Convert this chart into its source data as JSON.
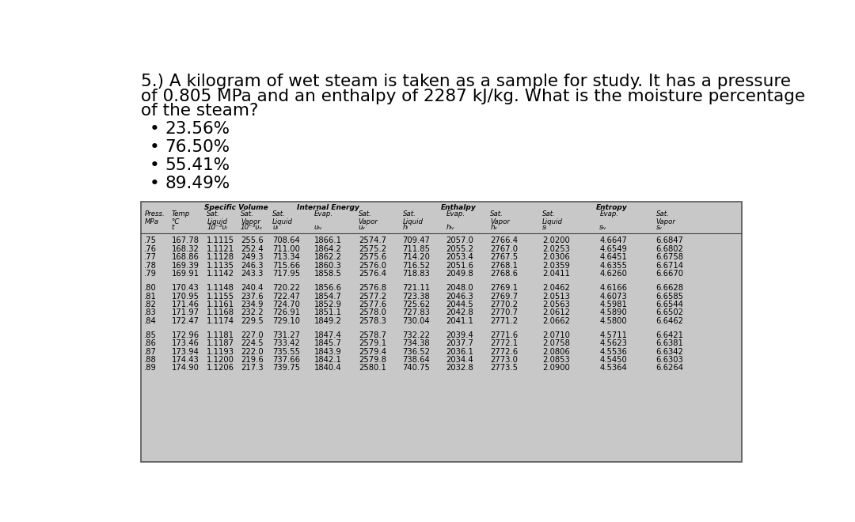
{
  "question_line1": "5.) A kilogram of wet steam is taken as a sample for study. It has a pressure",
  "question_line2": "of 0.805 MPa and an enthalpy of 2287 kJ/kg. What is the moisture percentage",
  "question_line3": "of the steam?",
  "bullets": [
    "23.56%",
    "76.50%",
    "55.41%",
    "89.49%"
  ],
  "table_bg": "#c8c8c8",
  "data_groups": [
    {
      "rows": [
        [
          ".75",
          "167.78",
          "1.1115",
          "255.6",
          "708.64",
          "1866.1",
          "2574.7",
          "709.47",
          "2057.0",
          "2766.4",
          "2.0200",
          "4.6647",
          "6.6847"
        ],
        [
          ".76",
          "168.32",
          "1.1121",
          "252.4",
          "711.00",
          "1864.2",
          "2575.2",
          "711.85",
          "2055.2",
          "2767.0",
          "2.0253",
          "4.6549",
          "6.6802"
        ],
        [
          ".77",
          "168.86",
          "1.1128",
          "249.3",
          "713.34",
          "1862.2",
          "2575.6",
          "714.20",
          "2053.4",
          "2767.5",
          "2.0306",
          "4.6451",
          "6.6758"
        ],
        [
          ".78",
          "169.39",
          "1.1135",
          "246.3",
          "715.66",
          "1860.3",
          "2576.0",
          "716.52",
          "2051.6",
          "2768.1",
          "2.0359",
          "4.6355",
          "6.6714"
        ],
        [
          ".79",
          "169.91",
          "1.1142",
          "243.3",
          "717.95",
          "1858.5",
          "2576.4",
          "718.83",
          "2049.8",
          "2768.6",
          "2.0411",
          "4.6260",
          "6.6670"
        ]
      ]
    },
    {
      "rows": [
        [
          ".80",
          "170.43",
          "1.1148",
          "240.4",
          "720.22",
          "1856.6",
          "2576.8",
          "721.11",
          "2048.0",
          "2769.1",
          "2.0462",
          "4.6166",
          "6.6628"
        ],
        [
          ".81",
          "170.95",
          "1.1155",
          "237.6",
          "722.47",
          "1854.7",
          "2577.2",
          "723.38",
          "2046.3",
          "2769.7",
          "2.0513",
          "4.6073",
          "6.6585"
        ],
        [
          ".82",
          "171.46",
          "1.1161",
          "234.9",
          "724.70",
          "1852.9",
          "2577.6",
          "725.62",
          "2044.5",
          "2770.2",
          "2.0563",
          "4.5981",
          "6.6544"
        ],
        [
          ".83",
          "171.97",
          "1.1168",
          "232.2",
          "726.91",
          "1851.1",
          "2578.0",
          "727.83",
          "2042.8",
          "2770.7",
          "2.0612",
          "4.5890",
          "6.6502"
        ],
        [
          ".84",
          "172.47",
          "1.1174",
          "229.5",
          "729.10",
          "1849.2",
          "2578.3",
          "730.04",
          "2041.1",
          "2771.2",
          "2.0662",
          "4.5800",
          "6.6462"
        ]
      ]
    },
    {
      "rows": [
        [
          ".85",
          "172.96",
          "1.1181",
          "227.0",
          "731.27",
          "1847.4",
          "2578.7",
          "732.22",
          "2039.4",
          "2771.6",
          "2.0710",
          "4.5711",
          "6.6421"
        ],
        [
          ".86",
          "173.46",
          "1.1187",
          "224.5",
          "733.42",
          "1845.7",
          "2579.1",
          "734.38",
          "2037.7",
          "2772.1",
          "2.0758",
          "4.5623",
          "6.6381"
        ],
        [
          ".87",
          "173.94",
          "1.1193",
          "222.0",
          "735.55",
          "1843.9",
          "2579.4",
          "736.52",
          "2036.1",
          "2772.6",
          "2.0806",
          "4.5536",
          "6.6342"
        ],
        [
          ".88",
          "174.43",
          "1.1200",
          "219.6",
          "737.66",
          "1842.1",
          "2579.8",
          "738.64",
          "2034.4",
          "2773.0",
          "2.0853",
          "4.5450",
          "6.6303"
        ],
        [
          ".89",
          "174.90",
          "1.1206",
          "217.3",
          "739.75",
          "1840.4",
          "2580.1",
          "740.75",
          "2032.8",
          "2773.5",
          "2.0900",
          "4.5364",
          "6.6264"
        ]
      ]
    }
  ]
}
